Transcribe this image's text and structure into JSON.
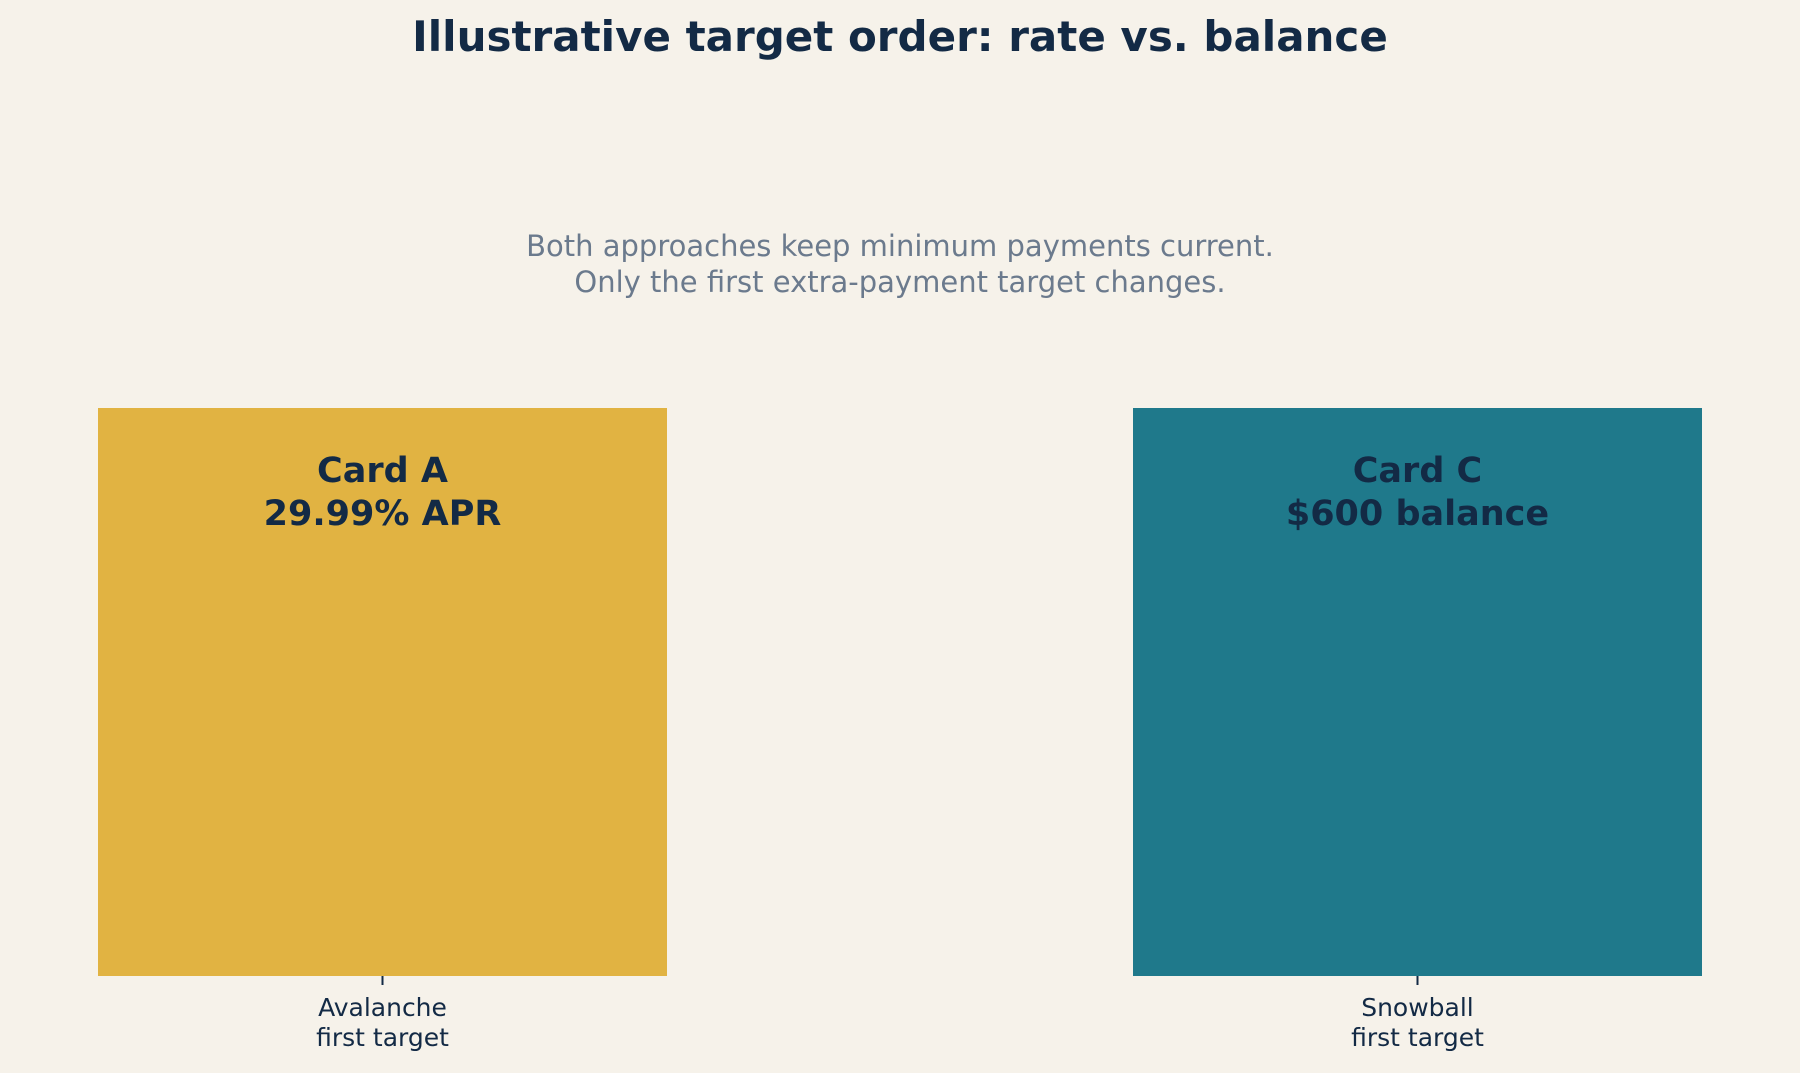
{
  "chart_data": {
    "type": "bar",
    "title": "Illustrative target order: rate vs. balance",
    "annotation": [
      "Both approaches keep minimum payments current.",
      "Only the first extra-payment target changes."
    ],
    "categories": [
      [
        "Avalanche",
        "first target"
      ],
      [
        "Snowball",
        "first target"
      ]
    ],
    "values": [
      1,
      1
    ],
    "bar_labels": [
      [
        "Card A",
        "29.99% APR"
      ],
      [
        "Card C",
        "$600 balance"
      ]
    ],
    "colors": [
      "#e1b342",
      "#1f798b"
    ],
    "xlabel": "",
    "ylabel": "",
    "ylim": [
      0,
      1
    ],
    "grid": false,
    "y_axis_visible": false
  }
}
